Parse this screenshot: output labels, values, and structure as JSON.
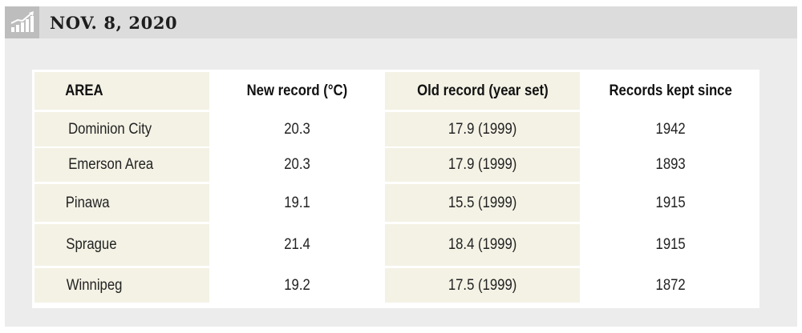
{
  "header": {
    "title": "NOV. 8, 2020",
    "icon": "bar-chart-icon"
  },
  "chart_data": {
    "type": "table",
    "columns": [
      "AREA",
      "New record (°C)",
      "Old record (year set)",
      "Records kept since"
    ],
    "rows": [
      [
        "Dominion City",
        "20.3",
        "17.9 (1999)",
        "1942"
      ],
      [
        "Emerson Area",
        "20.3",
        "17.9 (1999)",
        "1893"
      ],
      [
        "Pinawa",
        "19.1",
        "15.5 (1999)",
        "1915"
      ],
      [
        "Sprague",
        "21.4",
        "18.4 (1999)",
        "1915"
      ],
      [
        "Winnipeg",
        "19.2",
        "17.5 (1999)",
        "1872"
      ]
    ]
  },
  "colors": {
    "panel": "#ececec",
    "header_bar": "#dcdcdc",
    "icon_box": "#bdbdbd",
    "shaded_column": "#f4f2e5",
    "text": "#222222"
  }
}
